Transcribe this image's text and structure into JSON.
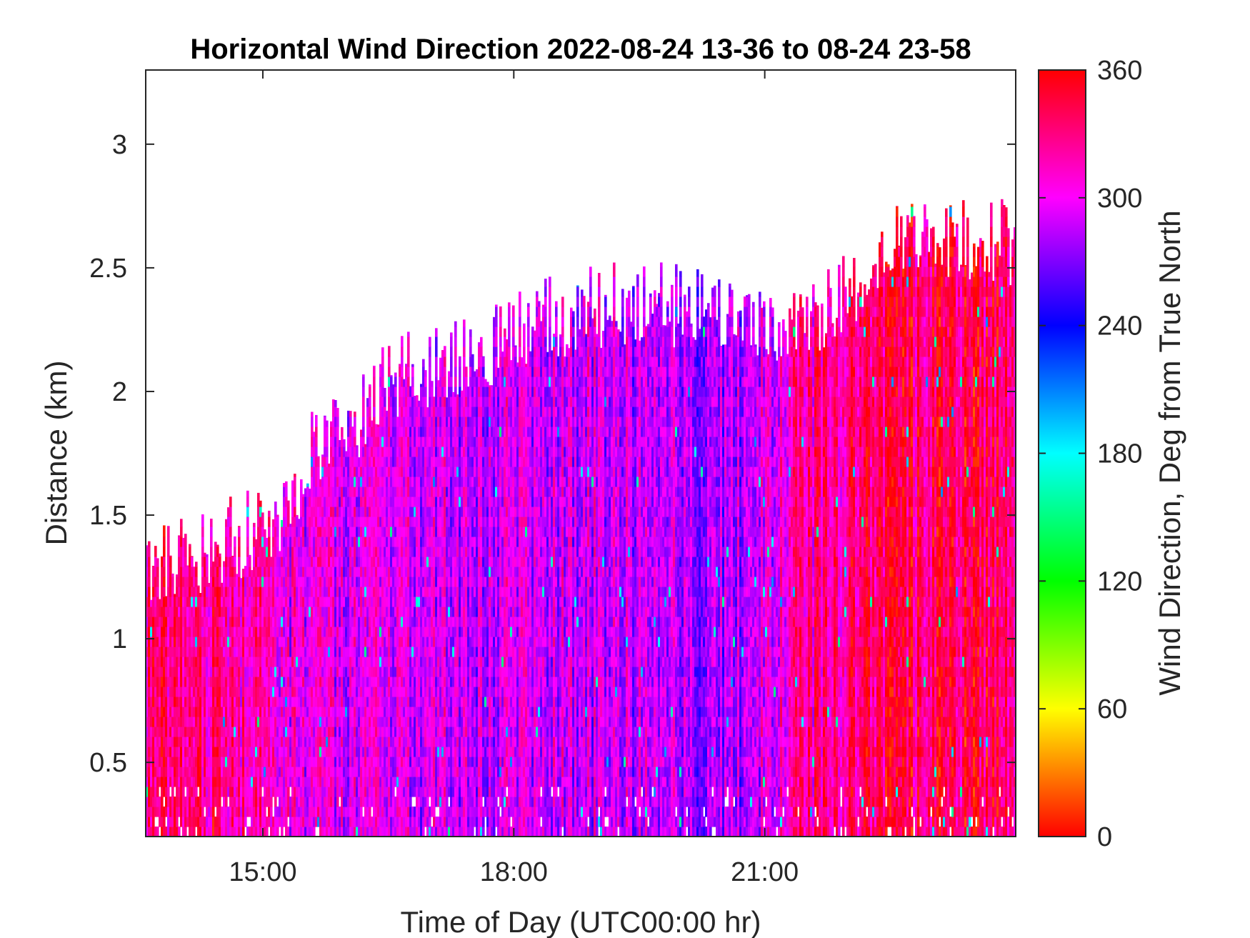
{
  "chart_data": {
    "type": "heatmap",
    "title": "Horizontal Wind Direction 2022-08-24 13-36 to 08-24 23-58",
    "xlabel": "Time of Day (UTC00:00 hr)",
    "ylabel": "Distance (km)",
    "colorbar_label": "Wind Direction, Deg from True North",
    "x_range_hours": [
      13.6,
      24.0
    ],
    "y_range_km": [
      0.2,
      3.3
    ],
    "x_ticks": [
      {
        "value": 15,
        "label": "15:00"
      },
      {
        "value": 18,
        "label": "18:00"
      },
      {
        "value": 21,
        "label": "21:00"
      }
    ],
    "y_ticks": [
      {
        "value": 0.5,
        "label": "0.5"
      },
      {
        "value": 1.0,
        "label": "1"
      },
      {
        "value": 1.5,
        "label": "1.5"
      },
      {
        "value": 2.0,
        "label": "2"
      },
      {
        "value": 2.5,
        "label": "2.5"
      },
      {
        "value": 3.0,
        "label": "3"
      }
    ],
    "colorbar_range": [
      0,
      360
    ],
    "colorbar_ticks": [
      {
        "value": 0,
        "label": "0"
      },
      {
        "value": 60,
        "label": "60"
      },
      {
        "value": 120,
        "label": "120"
      },
      {
        "value": 180,
        "label": "180"
      },
      {
        "value": 240,
        "label": "240"
      },
      {
        "value": 300,
        "label": "300"
      },
      {
        "value": 360,
        "label": "360"
      }
    ],
    "colormap": [
      "#ff0000",
      "#ffff00",
      "#00ff00",
      "#00ffff",
      "#0000ff",
      "#ff00ff",
      "#ff0000"
    ],
    "data_top_profile": [
      {
        "time": 13.6,
        "km": 1.25
      },
      {
        "time": 14.0,
        "km": 1.33
      },
      {
        "time": 14.6,
        "km": 1.4
      },
      {
        "time": 15.2,
        "km": 1.48
      },
      {
        "time": 15.6,
        "km": 1.78
      },
      {
        "time": 16.0,
        "km": 1.85
      },
      {
        "time": 16.5,
        "km": 2.05
      },
      {
        "time": 17.0,
        "km": 2.1
      },
      {
        "time": 17.5,
        "km": 2.15
      },
      {
        "time": 18.0,
        "km": 2.25
      },
      {
        "time": 19.0,
        "km": 2.35
      },
      {
        "time": 20.0,
        "km": 2.35
      },
      {
        "time": 21.0,
        "km": 2.25
      },
      {
        "time": 21.5,
        "km": 2.3
      },
      {
        "time": 22.0,
        "km": 2.4
      },
      {
        "time": 22.5,
        "km": 2.6
      },
      {
        "time": 23.0,
        "km": 2.62
      },
      {
        "time": 24.0,
        "km": 2.6
      }
    ],
    "direction_profile_deg": [
      {
        "time": 13.6,
        "deg": 325
      },
      {
        "time": 14.5,
        "deg": 330
      },
      {
        "time": 15.3,
        "deg": 300
      },
      {
        "time": 16.5,
        "deg": 290
      },
      {
        "time": 18.0,
        "deg": 295
      },
      {
        "time": 19.5,
        "deg": 290
      },
      {
        "time": 20.5,
        "deg": 275
      },
      {
        "time": 21.5,
        "deg": 320
      },
      {
        "time": 22.5,
        "deg": 335
      },
      {
        "time": 23.5,
        "deg": 340
      },
      {
        "time": 24.0,
        "deg": 330
      }
    ],
    "grid": false,
    "legend": "colorbar-right"
  }
}
